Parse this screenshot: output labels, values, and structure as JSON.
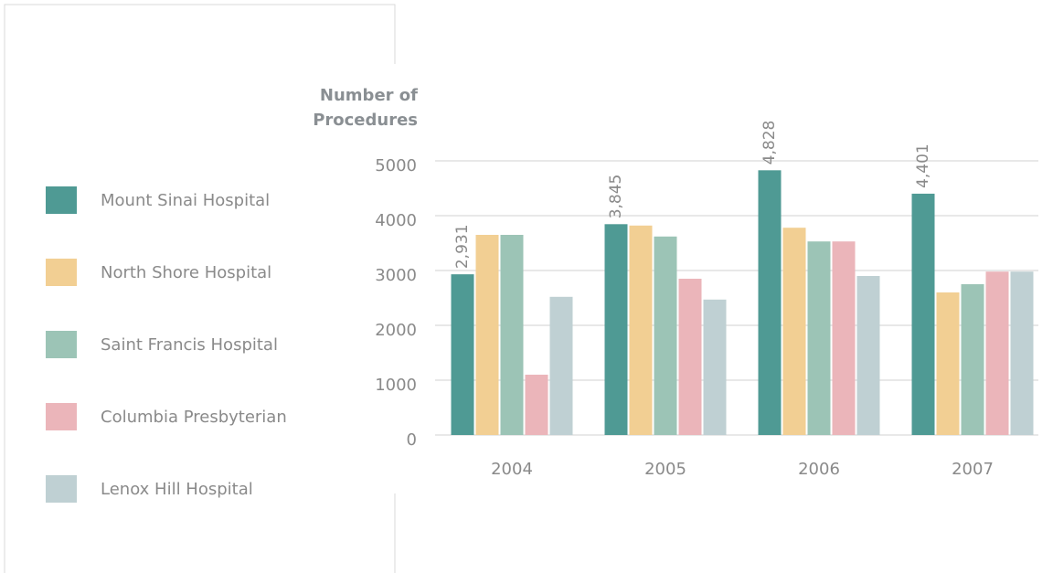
{
  "chart_data": {
    "type": "bar",
    "ylabel": [
      "Number of",
      "Procedures"
    ],
    "categories": [
      "2004",
      "2005",
      "2006",
      "2007"
    ],
    "series": [
      {
        "name": "Mount Sinai Hospital",
        "color": "#4f9a94",
        "values": [
          2931,
          3845,
          4828,
          4401
        ],
        "value_labels": [
          "2,931",
          "3,845",
          "4,828",
          "4,401"
        ]
      },
      {
        "name": "North Shore Hospital",
        "color": "#f2cf93",
        "values": [
          3650,
          3820,
          3780,
          2600
        ]
      },
      {
        "name": "Saint Francis Hospital",
        "color": "#9cc4b6",
        "values": [
          3650,
          3620,
          3530,
          2750
        ]
      },
      {
        "name": "Columbia Presbyterian",
        "color": "#ebb5ba",
        "values": [
          1100,
          2850,
          3530,
          2980
        ]
      },
      {
        "name": "Lenox Hill Hospital",
        "color": "#bfd0d3",
        "values": [
          2520,
          2470,
          2900,
          2980
        ]
      }
    ],
    "ylim": [
      0,
      5000
    ],
    "yticks": [
      0,
      1000,
      2000,
      3000,
      4000,
      5000
    ],
    "grid": true,
    "legend": "left"
  }
}
